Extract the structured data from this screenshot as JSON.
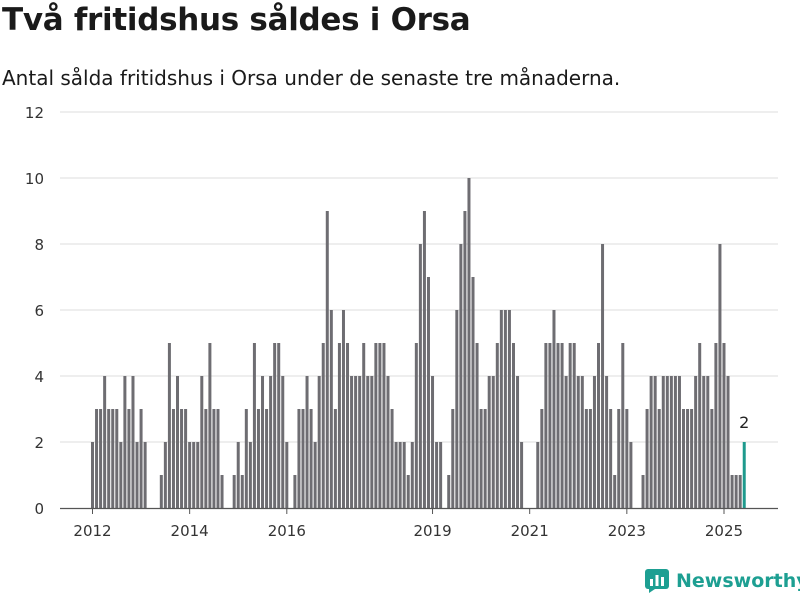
{
  "header": {
    "title": "Två fritidshus såldes i Orsa",
    "subtitle": "Antal sålda fritidshus i Orsa under de senaste tre månaderna."
  },
  "brand": {
    "name": "Newsworthy",
    "color": "#1d9f92"
  },
  "colors": {
    "bar": "#6e6d72",
    "highlight": "#1e9a8d",
    "grid": "#dcdcdc"
  },
  "chart_data": {
    "type": "bar",
    "ylim": [
      0,
      12
    ],
    "y_ticks": [
      0,
      2,
      4,
      6,
      8,
      10,
      12
    ],
    "x_ticks": [
      "2012",
      "2014",
      "2016",
      "2019",
      "2021",
      "2023",
      "2025"
    ],
    "grid": true,
    "start_month": "2012-01",
    "values": [
      2,
      3,
      3,
      4,
      3,
      3,
      3,
      2,
      4,
      3,
      4,
      2,
      3,
      2,
      null,
      null,
      null,
      1,
      2,
      5,
      3,
      4,
      3,
      3,
      2,
      2,
      2,
      4,
      3,
      5,
      3,
      3,
      1,
      null,
      null,
      1,
      2,
      1,
      3,
      2,
      5,
      3,
      4,
      3,
      4,
      5,
      5,
      4,
      2,
      null,
      1,
      3,
      3,
      4,
      3,
      2,
      4,
      5,
      9,
      6,
      3,
      5,
      6,
      5,
      4,
      4,
      4,
      5,
      4,
      4,
      5,
      5,
      5,
      4,
      3,
      2,
      2,
      2,
      1,
      2,
      5,
      8,
      9,
      7,
      4,
      2,
      2,
      null,
      1,
      3,
      6,
      8,
      9,
      10,
      7,
      5,
      3,
      3,
      4,
      4,
      5,
      6,
      6,
      6,
      5,
      4,
      2,
      null,
      null,
      null,
      2,
      3,
      5,
      5,
      6,
      5,
      5,
      4,
      5,
      5,
      4,
      4,
      3,
      3,
      4,
      5,
      8,
      4,
      3,
      1,
      3,
      5,
      3,
      2,
      null,
      null,
      1,
      3,
      4,
      4,
      3,
      4,
      4,
      4,
      4,
      4,
      3,
      3,
      3,
      4,
      5,
      4,
      4,
      3,
      5,
      8,
      5,
      4,
      1,
      1,
      1,
      2
    ],
    "highlight_label": "2"
  }
}
